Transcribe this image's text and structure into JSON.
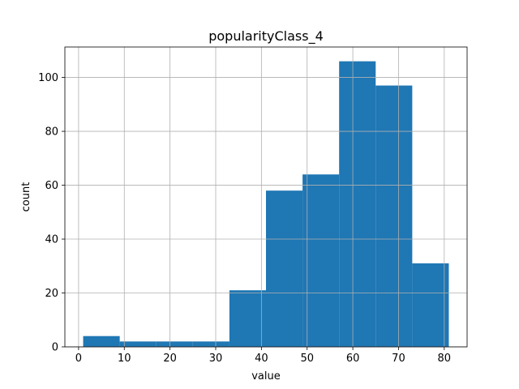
{
  "chart_data": {
    "type": "bar",
    "title": "popularityClass_4",
    "xlabel": "value",
    "ylabel": "count",
    "bins": [
      {
        "x0": 1,
        "x1": 9,
        "count": 4
      },
      {
        "x0": 9,
        "x1": 17,
        "count": 2
      },
      {
        "x0": 17,
        "x1": 25,
        "count": 2
      },
      {
        "x0": 25,
        "x1": 33,
        "count": 2
      },
      {
        "x0": 33,
        "x1": 41,
        "count": 21
      },
      {
        "x0": 41,
        "x1": 49,
        "count": 58
      },
      {
        "x0": 49,
        "x1": 57,
        "count": 64
      },
      {
        "x0": 57,
        "x1": 65,
        "count": 106
      },
      {
        "x0": 65,
        "x1": 73,
        "count": 97
      },
      {
        "x0": 73,
        "x1": 81,
        "count": 31
      }
    ],
    "xlim": [
      -3,
      85
    ],
    "ylim": [
      0,
      111.3
    ],
    "xticks": [
      0,
      10,
      20,
      30,
      40,
      50,
      60,
      70,
      80
    ],
    "yticks": [
      0,
      20,
      40,
      60,
      80,
      100
    ],
    "grid": true,
    "bar_color": "#1f77b4"
  }
}
